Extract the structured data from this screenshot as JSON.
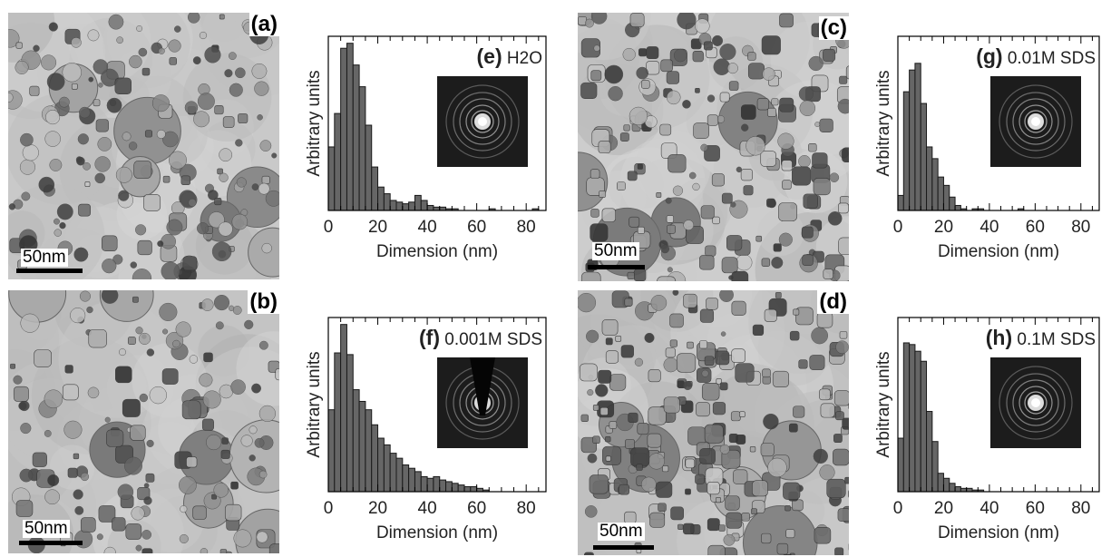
{
  "tem_images": [
    {
      "letter": "(a)",
      "scale": "50nm"
    },
    {
      "letter": "(b)",
      "scale": "50nm"
    },
    {
      "letter": "(c)",
      "scale": "50nm"
    },
    {
      "letter": "(d)",
      "scale": "50nm"
    }
  ],
  "chart_data": [
    {
      "type": "bar",
      "panel": "(e)",
      "label": "H2O",
      "xlabel": "Dimension (nm)",
      "ylabel": "Arbitrary units",
      "xlim": [
        0,
        88
      ],
      "xticks": [
        "0",
        "20",
        "40",
        "60",
        "80"
      ],
      "bin_width": 2.5,
      "x": [
        1.25,
        3.75,
        6.25,
        8.75,
        11.25,
        13.75,
        16.25,
        18.75,
        21.25,
        23.75,
        26.25,
        28.75,
        31.25,
        33.75,
        36.25,
        38.75,
        41.25,
        43.75,
        46.25,
        48.75,
        51.25,
        53.75,
        56.25,
        58.75,
        61.25,
        63.75,
        66.25,
        68.75,
        71.25,
        73.75,
        76.25,
        78.75,
        81.25,
        83.75,
        86.25
      ],
      "values": [
        0.38,
        0.58,
        0.97,
        1.0,
        0.87,
        0.74,
        0.51,
        0.26,
        0.14,
        0.1,
        0.06,
        0.05,
        0.04,
        0.05,
        0.09,
        0.06,
        0.03,
        0.02,
        0.02,
        0.01,
        0.01,
        0,
        0,
        0,
        0,
        0,
        0.01,
        0,
        0,
        0,
        0,
        0,
        0,
        0.01,
        0
      ]
    },
    {
      "type": "bar",
      "panel": "(f)",
      "label": "0.001M SDS",
      "xlabel": "Dimension (nm)",
      "ylabel": "Arbitrary units",
      "xlim": [
        0,
        88
      ],
      "xticks": [
        "0",
        "20",
        "40",
        "60",
        "80"
      ],
      "bin_width": 2.5,
      "x": [
        1.25,
        3.75,
        6.25,
        8.75,
        11.25,
        13.75,
        16.25,
        18.75,
        21.25,
        23.75,
        26.25,
        28.75,
        31.25,
        33.75,
        36.25,
        38.75,
        41.25,
        43.75,
        46.25,
        48.75,
        51.25,
        53.75,
        56.25,
        58.75,
        61.25,
        63.75,
        66.25,
        68.75,
        71.25,
        73.75,
        76.25,
        78.75,
        81.25,
        83.75,
        86.25
      ],
      "values": [
        0.49,
        0.83,
        1.0,
        0.82,
        0.61,
        0.54,
        0.49,
        0.4,
        0.32,
        0.28,
        0.23,
        0.2,
        0.16,
        0.14,
        0.12,
        0.09,
        0.08,
        0.09,
        0.07,
        0.06,
        0.05,
        0.04,
        0.03,
        0.03,
        0.02,
        0.01,
        0,
        0,
        0,
        0,
        0,
        0,
        0,
        0,
        0
      ]
    },
    {
      "type": "bar",
      "panel": "(g)",
      "label": "0.01M SDS",
      "xlabel": "Dimension (nm)",
      "ylabel": "Arbitrary units",
      "xlim": [
        0,
        88
      ],
      "xticks": [
        "0",
        "20",
        "40",
        "60",
        "80"
      ],
      "bin_width": 2.5,
      "x": [
        1.25,
        3.75,
        6.25,
        8.75,
        11.25,
        13.75,
        16.25,
        18.75,
        21.25,
        23.75,
        26.25,
        28.75,
        31.25,
        33.75,
        36.25,
        38.75,
        41.25,
        43.75,
        46.25,
        48.75,
        51.25,
        53.75,
        56.25,
        58.75,
        61.25,
        63.75,
        66.25,
        68.75,
        71.25,
        73.75,
        76.25,
        78.75,
        81.25,
        83.75,
        86.25
      ],
      "values": [
        0.09,
        0.71,
        0.84,
        0.88,
        0.64,
        0.38,
        0.31,
        0.2,
        0.15,
        0.08,
        0.03,
        0.01,
        0,
        0.01,
        0.01,
        0,
        0,
        0,
        0,
        0,
        0,
        0.01,
        0,
        0,
        0,
        0,
        0,
        0,
        0,
        0,
        0,
        0,
        0,
        0,
        0
      ]
    },
    {
      "type": "bar",
      "panel": "(h)",
      "label": "0.1M SDS",
      "xlabel": "Dimension (nm)",
      "ylabel": "Arbitrary units",
      "xlim": [
        0,
        88
      ],
      "xticks": [
        "0",
        "20",
        "40",
        "60",
        "80"
      ],
      "bin_width": 2.5,
      "x": [
        1.25,
        3.75,
        6.25,
        8.75,
        11.25,
        13.75,
        16.25,
        18.75,
        21.25,
        23.75,
        26.25,
        28.75,
        31.25,
        33.75,
        36.25,
        38.75,
        41.25,
        43.75,
        46.25,
        48.75,
        51.25,
        53.75,
        56.25,
        58.75,
        61.25,
        63.75,
        66.25,
        68.75,
        71.25,
        73.75,
        76.25,
        78.75,
        81.25,
        83.75,
        86.25
      ],
      "values": [
        0.32,
        0.89,
        0.88,
        0.84,
        0.78,
        0.48,
        0.3,
        0.11,
        0.08,
        0.05,
        0.03,
        0.02,
        0.02,
        0.01,
        0.01,
        0,
        0,
        0,
        0,
        0,
        0,
        0,
        0,
        0,
        0,
        0,
        0,
        0,
        0,
        0,
        0,
        0,
        0,
        0,
        0
      ]
    }
  ]
}
